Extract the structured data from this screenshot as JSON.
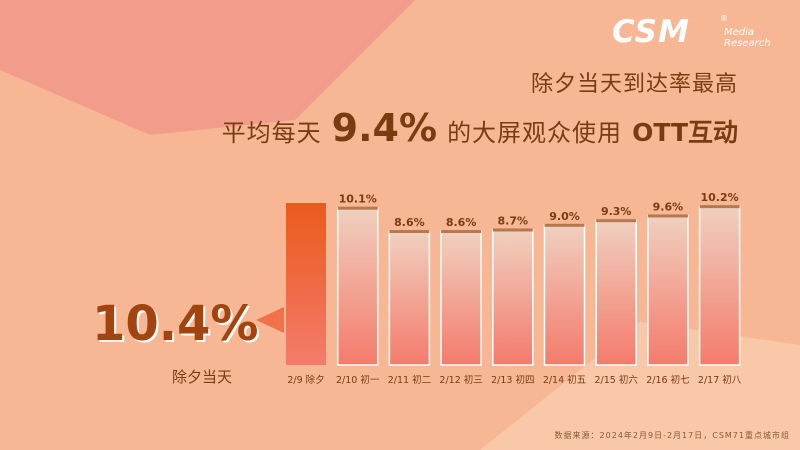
{
  "brand": {
    "logo_text": "CSM",
    "logo_registered": "®",
    "logo_sub1": "Media",
    "logo_sub2": "Research"
  },
  "headline": {
    "line1": "除夕当天到达率最高",
    "line2_part1": "平均每天",
    "line2_value": "9.4%",
    "line2_part2": "的大屏观众使用",
    "line2_part3": "OTT互动"
  },
  "highlight": {
    "value": "10.4%",
    "label": "除夕当天"
  },
  "source_note": "数据来源：2024年2月9日-2月17日，CSM71重点城市组",
  "colors": {
    "background": "#f8b794",
    "highlight_bar_top": "#ea5a1c",
    "highlight_bar_bottom": "#f47b6c",
    "bar_top": "#f0d0bf",
    "bar_bottom": "#f47b6c",
    "label_color": "#7a3a12"
  },
  "chart_data": {
    "type": "bar",
    "categories": [
      "2/9 除夕",
      "2/10 初一",
      "2/11 初二",
      "2/12 初三",
      "2/13 初四",
      "2/14 初五",
      "2/15 初六",
      "2/16 初七",
      "2/17 初八"
    ],
    "values": [
      10.4,
      10.1,
      8.6,
      8.6,
      8.7,
      9.0,
      9.3,
      9.6,
      10.2
    ],
    "data_labels": [
      "",
      "10.1%",
      "8.6%",
      "8.6%",
      "8.7%",
      "9.0%",
      "9.3%",
      "9.6%",
      "10.2%"
    ],
    "highlight_index": 0,
    "ylim": [
      0,
      10.4
    ],
    "grid": false,
    "legend": "none"
  }
}
